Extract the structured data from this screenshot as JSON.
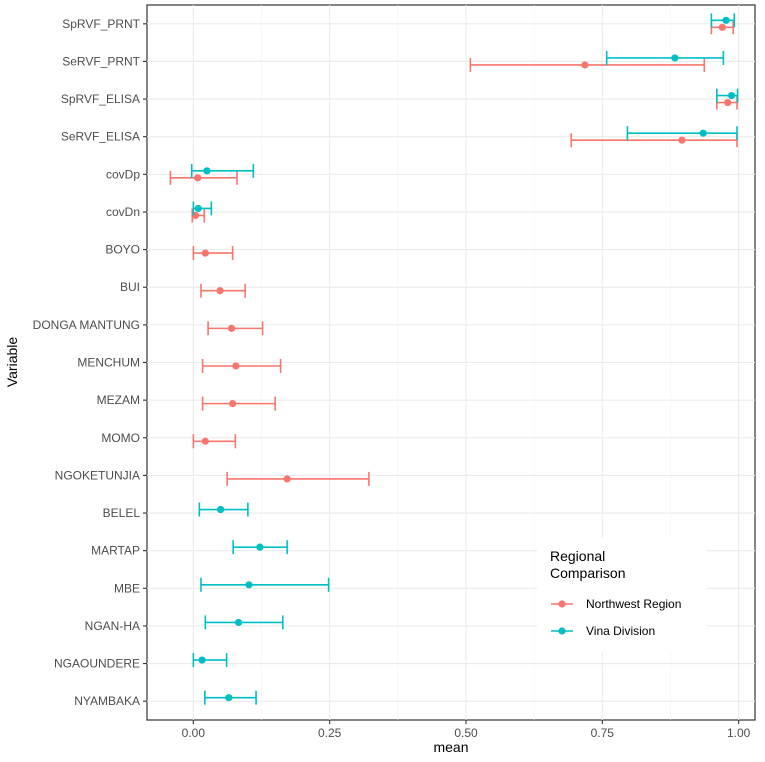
{
  "chart_data": {
    "type": "errorbar",
    "title": "",
    "xlabel": "mean",
    "ylabel": "Variable",
    "xlim": [
      -0.085,
      1.03
    ],
    "x_ticks": [
      0.0,
      0.25,
      0.5,
      0.75,
      1.0
    ],
    "x_tick_labels": [
      "0.00",
      "0.25",
      "0.50",
      "0.75",
      "1.00"
    ],
    "categories": [
      "SpRVF_PRNT",
      "SeRVF_PRNT",
      "SpRVF_ELISA",
      "SeRVF_ELISA",
      "covDp",
      "covDn",
      "BOYO",
      "BUI",
      "DONGA MANTUNG",
      "MENCHUM",
      "MEZAM",
      "MOMO",
      "NGOKETUNJIA",
      "BELEL",
      "MARTAP",
      "MBE",
      "NGAN-HA",
      "NGAOUNDERE",
      "NYAMBAKA"
    ],
    "legend": {
      "title_line1": "Regional",
      "title_line2": "Comparison",
      "position": "bottom-right",
      "entries": [
        {
          "name": "Northwest Region",
          "color": "#F8766D"
        },
        {
          "name": "Vina Division",
          "color": "#00BFC4"
        }
      ]
    },
    "series": [
      {
        "name": "Northwest Region",
        "color": "#F8766D",
        "points": [
          {
            "category": "SpRVF_PRNT",
            "mean": 0.97,
            "low": 0.95,
            "high": 0.99
          },
          {
            "category": "SeRVF_PRNT",
            "mean": 0.718,
            "low": 0.508,
            "high": 0.937
          },
          {
            "category": "SpRVF_ELISA",
            "mean": 0.98,
            "low": 0.96,
            "high": 0.997
          },
          {
            "category": "SeRVF_ELISA",
            "mean": 0.896,
            "low": 0.693,
            "high": 0.997
          },
          {
            "category": "covDp",
            "mean": 0.008,
            "low": -0.042,
            "high": 0.08
          },
          {
            "category": "covDn",
            "mean": 0.004,
            "low": -0.002,
            "high": 0.02
          },
          {
            "category": "BOYO",
            "mean": 0.022,
            "low": 0.0,
            "high": 0.072
          },
          {
            "category": "BUI",
            "mean": 0.049,
            "low": 0.014,
            "high": 0.095
          },
          {
            "category": "DONGA MANTUNG",
            "mean": 0.07,
            "low": 0.027,
            "high": 0.127
          },
          {
            "category": "MENCHUM",
            "mean": 0.078,
            "low": 0.017,
            "high": 0.16
          },
          {
            "category": "MEZAM",
            "mean": 0.072,
            "low": 0.017,
            "high": 0.15
          },
          {
            "category": "MOMO",
            "mean": 0.022,
            "low": 0.0,
            "high": 0.077
          },
          {
            "category": "NGOKETUNJIA",
            "mean": 0.172,
            "low": 0.062,
            "high": 0.322
          }
        ]
      },
      {
        "name": "Vina Division",
        "color": "#00BFC4",
        "points": [
          {
            "category": "SpRVF_PRNT",
            "mean": 0.977,
            "low": 0.95,
            "high": 0.992
          },
          {
            "category": "SeRVF_PRNT",
            "mean": 0.883,
            "low": 0.758,
            "high": 0.972
          },
          {
            "category": "SpRVF_ELISA",
            "mean": 0.987,
            "low": 0.96,
            "high": 0.998
          },
          {
            "category": "SeRVF_ELISA",
            "mean": 0.935,
            "low": 0.796,
            "high": 0.997
          },
          {
            "category": "covDp",
            "mean": 0.025,
            "low": -0.003,
            "high": 0.11
          },
          {
            "category": "covDn",
            "mean": 0.009,
            "low": 0.0,
            "high": 0.033
          },
          {
            "category": "BELEL",
            "mean": 0.05,
            "low": 0.011,
            "high": 0.1
          },
          {
            "category": "MARTAP",
            "mean": 0.122,
            "low": 0.073,
            "high": 0.172
          },
          {
            "category": "MBE",
            "mean": 0.102,
            "low": 0.014,
            "high": 0.248
          },
          {
            "category": "NGAN-HA",
            "mean": 0.083,
            "low": 0.022,
            "high": 0.164
          },
          {
            "category": "NGAOUNDERE",
            "mean": 0.016,
            "low": 0.0,
            "high": 0.061
          },
          {
            "category": "NYAMBAKA",
            "mean": 0.065,
            "low": 0.021,
            "high": 0.115
          }
        ]
      }
    ]
  }
}
